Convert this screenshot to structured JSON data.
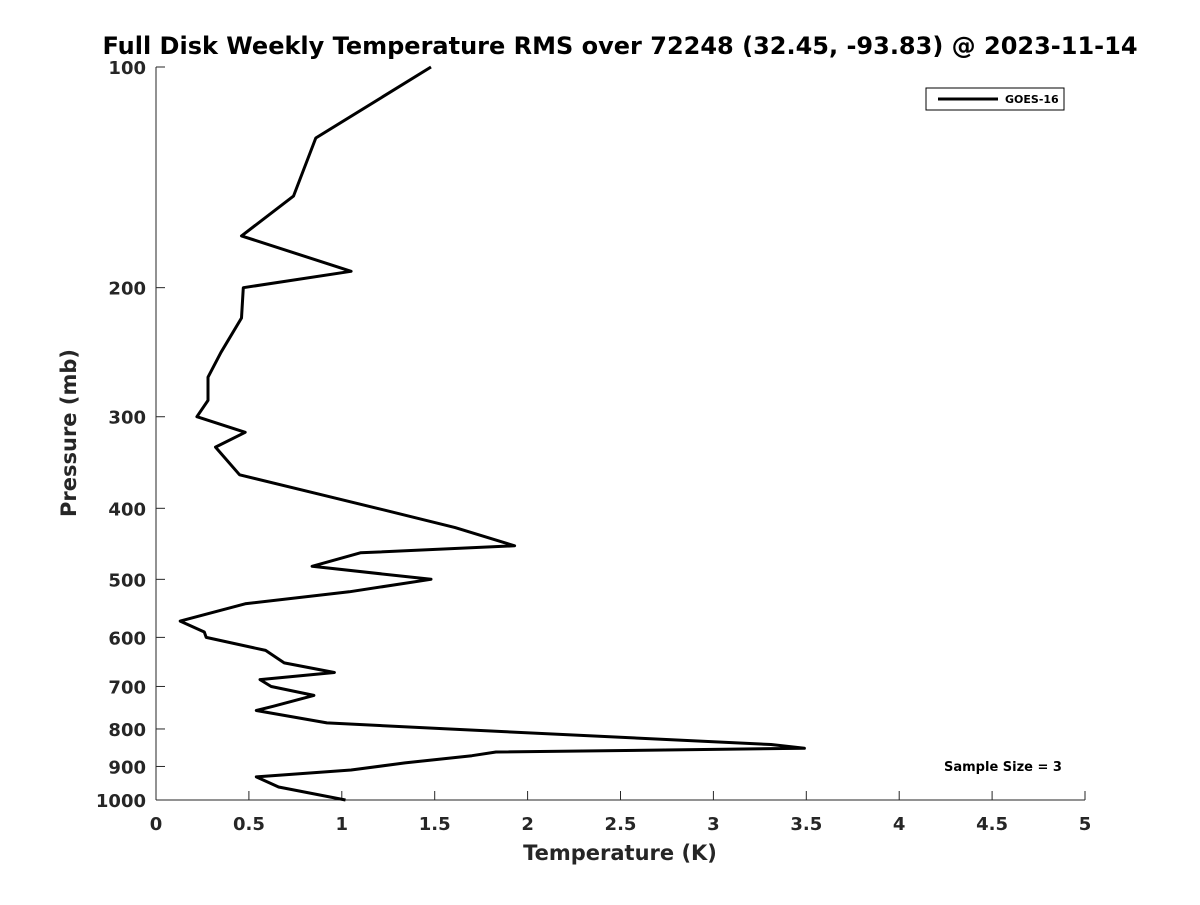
{
  "chart_data": {
    "type": "line",
    "title": "Full Disk Weekly Temperature RMS over 72248 (32.45, -93.83) @ 2023-11-14",
    "xlabel": "Temperature (K)",
    "ylabel": "Pressure (mb)",
    "xlim": [
      0,
      5
    ],
    "ylim": [
      1000,
      100
    ],
    "y_scale": "log",
    "y_reversed": true,
    "x_ticks": [
      "0",
      "0.5",
      "1",
      "1.5",
      "2",
      "2.5",
      "3",
      "3.5",
      "4",
      "4.5",
      "5"
    ],
    "y_ticks": [
      "100",
      "200",
      "300",
      "400",
      "500",
      "600",
      "700",
      "800",
      "900",
      "1000"
    ],
    "grid": false,
    "legend_position": "top-right",
    "color": "#000000",
    "series": [
      {
        "name": "GOES-16",
        "x": [
          1.48,
          0.86,
          0.74,
          0.46,
          1.05,
          0.47,
          0.46,
          0.35,
          0.28,
          0.28,
          0.22,
          0.48,
          0.32,
          0.45,
          0.92,
          1.19,
          1.61,
          1.93,
          1.1,
          0.84,
          1.48,
          1.04,
          0.48,
          0.13,
          0.26,
          0.27,
          0.59,
          0.69,
          0.96,
          0.56,
          0.62,
          0.85,
          0.63,
          0.54,
          0.92,
          1.58,
          3.31,
          3.49,
          1.83,
          1.7,
          1.34,
          1.05,
          0.54,
          0.66,
          1.02
        ],
        "y": [
          100,
          125,
          150,
          170,
          190,
          200,
          220,
          245,
          265,
          285,
          300,
          315,
          330,
          360,
          385,
          400,
          425,
          450,
          460,
          480,
          500,
          520,
          540,
          570,
          590,
          600,
          625,
          650,
          670,
          685,
          700,
          720,
          745,
          755,
          785,
          800,
          840,
          850,
          860,
          870,
          890,
          910,
          930,
          960,
          1000
        ]
      }
    ],
    "annotations": [
      "Sample Size = 3"
    ]
  }
}
